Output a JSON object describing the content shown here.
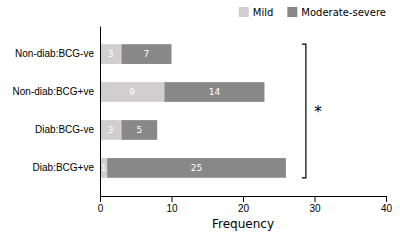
{
  "chart_data": {
    "type": "bar",
    "orientation": "horizontal",
    "stacked": true,
    "categories": [
      "Diab:BCG+ve",
      "Diab:BCG-ve",
      "Non-diab:BCG+ve",
      "Non-diab:BCG-ve"
    ],
    "series": [
      {
        "name": "Mild",
        "color": "#d0cece",
        "values": [
          1,
          3,
          9,
          3
        ]
      },
      {
        "name": "Moderate-severe",
        "color": "#888888",
        "values": [
          25,
          5,
          14,
          7
        ]
      }
    ],
    "x_label": "Frequency",
    "xlim": [
      0,
      40
    ],
    "xticks": [
      0,
      10,
      20,
      30,
      40
    ],
    "data_labels": true,
    "legend": "top-right",
    "grid": false,
    "annotations": [
      "*"
    ]
  }
}
